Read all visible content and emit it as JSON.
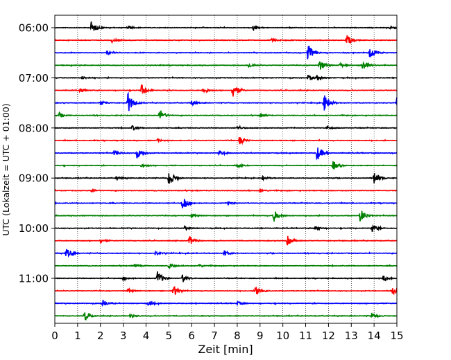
{
  "chart_data": {
    "type": "line",
    "title": "",
    "xlabel": "Zeit  [min]",
    "ylabel": "UTC (Lokalzeit = UTC + 01:00)",
    "xlim": [
      0,
      15
    ],
    "x_ticks": [
      0,
      1,
      2,
      3,
      4,
      5,
      6,
      7,
      8,
      9,
      10,
      11,
      12,
      13,
      14,
      15
    ],
    "grid": "vertical dotted",
    "y_tick_labels": [
      {
        "label": "06:00",
        "row": 0
      },
      {
        "label": "07:00",
        "row": 4
      },
      {
        "label": "08:00",
        "row": 8
      },
      {
        "label": "09:00",
        "row": 12
      },
      {
        "label": "10:00",
        "row": 16
      },
      {
        "label": "11:00",
        "row": 20
      }
    ],
    "colors": [
      "#000000",
      "#ff0000",
      "#0000ff",
      "#008000"
    ],
    "series": [
      {
        "row": 0,
        "start": "06:00",
        "color": "#000000",
        "events": [
          [
            1.6,
            1.0
          ],
          [
            3.2,
            0.3
          ],
          [
            8.7,
            0.35
          ],
          [
            14.7,
            0.3
          ]
        ]
      },
      {
        "row": 1,
        "start": "06:15",
        "color": "#ff0000",
        "events": [
          [
            12.8,
            0.9
          ],
          [
            2.5,
            0.3
          ],
          [
            9.5,
            0.3
          ]
        ]
      },
      {
        "row": 2,
        "start": "06:30",
        "color": "#0000ff",
        "events": [
          [
            11.1,
            1.5
          ],
          [
            13.8,
            1.1
          ],
          [
            2.3,
            0.3
          ]
        ]
      },
      {
        "row": 3,
        "start": "06:45",
        "color": "#008000",
        "events": [
          [
            11.6,
            0.9
          ],
          [
            13.5,
            1.0
          ],
          [
            8.5,
            0.4
          ],
          [
            12.5,
            0.35
          ]
        ]
      },
      {
        "row": 4,
        "start": "07:00",
        "color": "#000000",
        "events": [
          [
            11.1,
            0.5
          ],
          [
            11.5,
            0.4
          ],
          [
            1.2,
            0.25
          ]
        ]
      },
      {
        "row": 5,
        "start": "07:15",
        "color": "#ff0000",
        "events": [
          [
            7.8,
            1.5
          ],
          [
            3.8,
            1.0
          ],
          [
            6.5,
            0.5
          ],
          [
            1.1,
            0.3
          ]
        ]
      },
      {
        "row": 6,
        "start": "07:30",
        "color": "#0000ff",
        "events": [
          [
            3.2,
            1.8
          ],
          [
            11.8,
            1.5
          ],
          [
            15.0,
            1.2
          ],
          [
            2.0,
            0.4
          ],
          [
            6.0,
            0.3
          ]
        ]
      },
      {
        "row": 7,
        "start": "07:45",
        "color": "#008000",
        "events": [
          [
            4.6,
            1.0
          ],
          [
            0.2,
            0.4
          ],
          [
            9.0,
            0.3
          ]
        ]
      },
      {
        "row": 8,
        "start": "08:00",
        "color": "#000000",
        "events": [
          [
            3.4,
            0.4
          ],
          [
            8.0,
            0.3
          ],
          [
            11.9,
            0.3
          ]
        ]
      },
      {
        "row": 9,
        "start": "08:15",
        "color": "#ff0000",
        "events": [
          [
            8.1,
            0.7
          ],
          [
            4.5,
            0.2
          ]
        ]
      },
      {
        "row": 10,
        "start": "08:30",
        "color": "#0000ff",
        "events": [
          [
            3.6,
            0.9
          ],
          [
            11.5,
            1.3
          ],
          [
            2.6,
            0.5
          ],
          [
            7.2,
            0.4
          ]
        ]
      },
      {
        "row": 11,
        "start": "08:45",
        "color": "#008000",
        "events": [
          [
            12.2,
            0.8
          ],
          [
            3.8,
            0.3
          ],
          [
            8.0,
            0.25
          ]
        ]
      },
      {
        "row": 12,
        "start": "09:00",
        "color": "#000000",
        "events": [
          [
            5.0,
            1.4
          ],
          [
            14.0,
            1.1
          ],
          [
            2.7,
            0.3
          ],
          [
            9.1,
            0.3
          ]
        ]
      },
      {
        "row": 13,
        "start": "09:15",
        "color": "#ff0000",
        "events": [
          [
            1.6,
            0.3
          ],
          [
            9.0,
            0.25
          ]
        ]
      },
      {
        "row": 14,
        "start": "09:30",
        "color": "#0000ff",
        "events": [
          [
            5.6,
            1.4
          ],
          [
            7.6,
            0.3
          ]
        ]
      },
      {
        "row": 15,
        "start": "09:45",
        "color": "#008000",
        "events": [
          [
            9.6,
            1.0
          ],
          [
            13.4,
            1.2
          ],
          [
            6.0,
            0.3
          ]
        ]
      },
      {
        "row": 16,
        "start": "10:00",
        "color": "#000000",
        "events": [
          [
            13.9,
            0.7
          ],
          [
            11.4,
            0.4
          ],
          [
            5.7,
            0.3
          ]
        ]
      },
      {
        "row": 17,
        "start": "10:15",
        "color": "#ff0000",
        "events": [
          [
            5.9,
            0.8
          ],
          [
            10.2,
            0.8
          ],
          [
            2.0,
            0.3
          ]
        ]
      },
      {
        "row": 18,
        "start": "10:30",
        "color": "#0000ff",
        "events": [
          [
            0.5,
            0.8
          ],
          [
            7.4,
            0.5
          ],
          [
            4.4,
            0.3
          ]
        ]
      },
      {
        "row": 19,
        "start": "10:45",
        "color": "#008000",
        "events": [
          [
            5.0,
            0.4
          ],
          [
            6.3,
            0.3
          ],
          [
            3.5,
            0.3
          ]
        ]
      },
      {
        "row": 20,
        "start": "11:00",
        "color": "#000000",
        "events": [
          [
            4.5,
            1.2
          ],
          [
            5.6,
            0.6
          ],
          [
            14.4,
            0.5
          ],
          [
            3.0,
            0.3
          ]
        ]
      },
      {
        "row": 21,
        "start": "11:15",
        "color": "#ff0000",
        "events": [
          [
            5.2,
            1.0
          ],
          [
            8.8,
            1.0
          ],
          [
            14.8,
            0.6
          ],
          [
            3.2,
            0.3
          ]
        ]
      },
      {
        "row": 22,
        "start": "11:30",
        "color": "#0000ff",
        "events": [
          [
            2.1,
            0.6
          ],
          [
            4.1,
            0.4
          ],
          [
            8.0,
            0.3
          ]
        ]
      },
      {
        "row": 23,
        "start": "11:45",
        "color": "#008000",
        "events": [
          [
            1.3,
            0.9
          ],
          [
            13.9,
            0.5
          ],
          [
            3.3,
            0.3
          ]
        ]
      }
    ]
  }
}
